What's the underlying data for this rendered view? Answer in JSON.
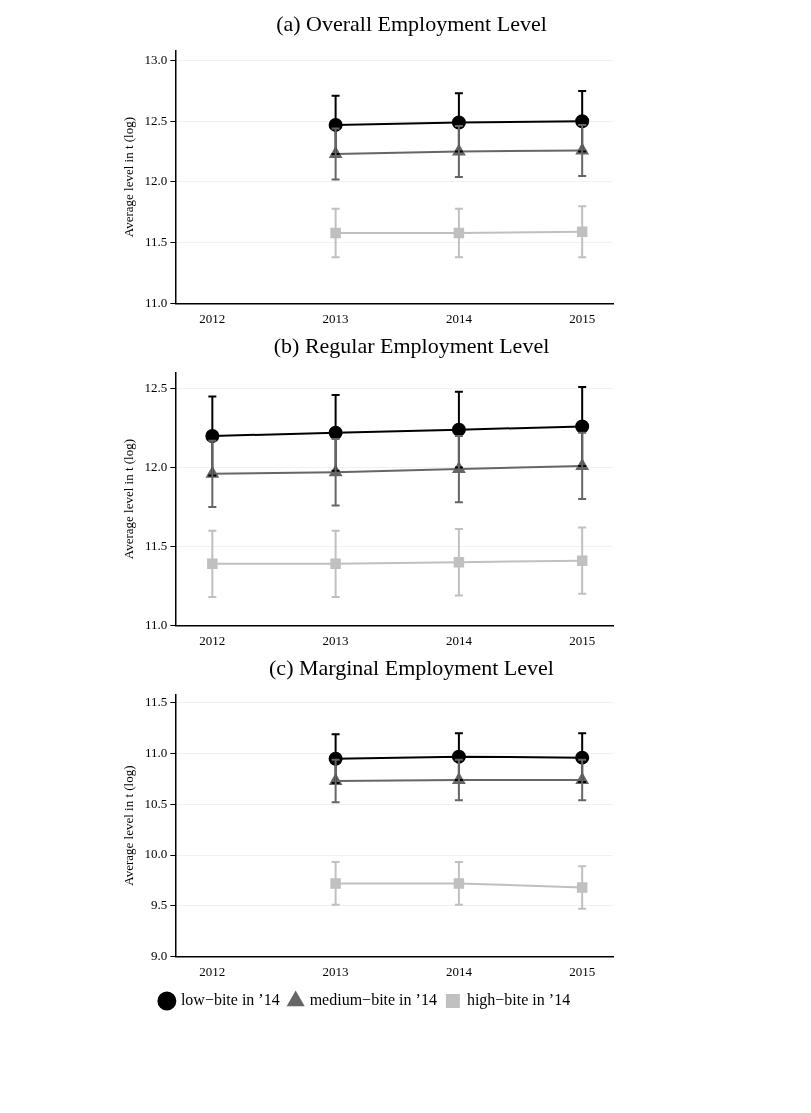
{
  "chart_data": [
    {
      "type": "line",
      "title": "(a) Overall Employment Level",
      "ylabel": "Average level in t (log)",
      "x": [
        2013,
        2014,
        2015
      ],
      "xlim": [
        2011.7,
        2015.25
      ],
      "xticks": [
        2012,
        2013,
        2014,
        2015
      ],
      "ylim": [
        11.0,
        13.08
      ],
      "yticks": [
        {
          "value": 11,
          "label": "11.0"
        },
        11.5,
        {
          "value": 12,
          "label": "12.0"
        },
        12.5,
        {
          "value": 13,
          "label": "13.0"
        }
      ],
      "grid": "y",
      "legend": false,
      "series": [
        {
          "color": "#000000",
          "marker": "circle",
          "values": [
            12.47,
            12.49,
            12.5
          ],
          "errors": [
            0.24,
            0.24,
            0.25
          ]
        },
        {
          "color": "#666666",
          "marker": "triangle",
          "values": [
            12.23,
            12.25,
            12.26
          ],
          "errors": [
            0.21,
            0.21,
            0.21
          ]
        },
        {
          "color": "#c0c0c0",
          "marker": "square",
          "values": [
            11.58,
            11.58,
            11.59
          ],
          "errors": [
            0.2,
            0.2,
            0.21
          ]
        }
      ]
    },
    {
      "type": "line",
      "title": "(b) Regular Employment Level",
      "ylabel": "Average level in t (log)",
      "x": [
        2012,
        2013,
        2014,
        2015
      ],
      "xlim": [
        2011.7,
        2015.25
      ],
      "xticks": [
        2012,
        2013,
        2014,
        2015
      ],
      "ylim": [
        11.0,
        12.6
      ],
      "yticks": [
        {
          "value": 11,
          "label": "11.0"
        },
        11.5,
        {
          "value": 12,
          "label": "12.0"
        },
        12.5
      ],
      "grid": "y",
      "legend": false,
      "series": [
        {
          "color": "#000000",
          "marker": "circle",
          "values": [
            12.2,
            12.22,
            12.24,
            12.26
          ],
          "errors": [
            0.25,
            0.24,
            0.24,
            0.25
          ]
        },
        {
          "color": "#666666",
          "marker": "triangle",
          "values": [
            11.96,
            11.97,
            11.99,
            12.01
          ],
          "errors": [
            0.21,
            0.21,
            0.21,
            0.21
          ]
        },
        {
          "color": "#c0c0c0",
          "marker": "square",
          "values": [
            11.39,
            11.39,
            11.4,
            11.41
          ],
          "errors": [
            0.21,
            0.21,
            0.21,
            0.21
          ]
        }
      ]
    },
    {
      "type": "line",
      "title": "(c) Marginal Employment Level",
      "ylabel": "Average level in t (log)",
      "x": [
        2013,
        2014,
        2015
      ],
      "xlim": [
        2011.7,
        2015.25
      ],
      "xticks": [
        2012,
        2013,
        2014,
        2015
      ],
      "ylim": [
        9.0,
        11.58
      ],
      "yticks": [
        {
          "value": 9,
          "label": "9.0"
        },
        9.5,
        {
          "value": 10,
          "label": "10.0"
        },
        10.5,
        {
          "value": 11,
          "label": "11.0"
        },
        11.5
      ],
      "grid": "y",
      "legend": "bottom",
      "series": [
        {
          "name": "low−bite in ’14",
          "color": "#000000",
          "marker": "circle",
          "values": [
            10.95,
            10.97,
            10.96
          ],
          "errors": [
            0.24,
            0.23,
            0.24
          ]
        },
        {
          "name": "medium−bite in ’14",
          "color": "#666666",
          "marker": "triangle",
          "values": [
            10.73,
            10.74,
            10.74
          ],
          "errors": [
            0.21,
            0.2,
            0.2
          ]
        },
        {
          "name": "high−bite in ’14",
          "color": "#c0c0c0",
          "marker": "square",
          "values": [
            9.72,
            9.72,
            9.68
          ],
          "errors": [
            0.21,
            0.21,
            0.21
          ]
        }
      ]
    }
  ]
}
